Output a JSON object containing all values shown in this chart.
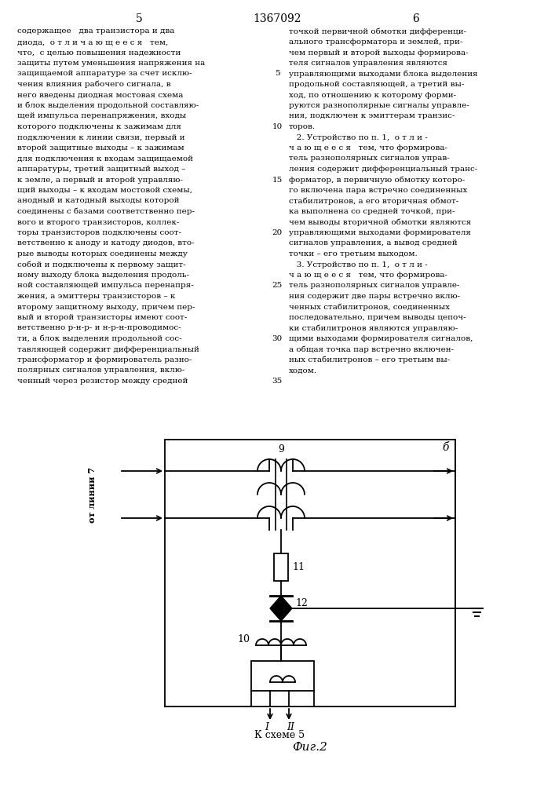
{
  "title_number": "1367092",
  "page_left": "5",
  "page_right": "6",
  "fig_label": "Фиг.2",
  "caption_label": "К схеме 5",
  "left_col_lines": [
    "содержащее   два транзистора и два",
    "диода,  о т л и ч а ю щ е е с я   тем,",
    "что,  с целью повышения надежности",
    "защиты путем уменьшения напряжения на",
    "защищаемой аппаратуре за счет исклю-",
    "чения влияния рабочего сигнала, в",
    "него введены диодная мостовая схема",
    "и блок выделения продольной составляю-",
    "щей импульса перенапряжения, входы",
    "которого подключены к зажимам для",
    "подключения к линии связи, первый и",
    "второй защитные выходы – к зажимам",
    "для подключения к входам защищаемой",
    "аппаратуры, третий защитный выход –",
    "к земле, а первый и второй управляю-",
    "щий выходы – к входам мостовой схемы,",
    "анодный и катодный выходы которой",
    "соединены с базами соответственно пер-",
    "вого и второго транзисторов, коллек-",
    "торы транзисторов подключены соот-",
    "ветственно к аноду и катоду диодов, вто-",
    "рые выводы которых соединены между",
    "собой и подключены к первому защит-",
    "ному выходу блока выделения продоль-",
    "ной составляющей импульса перенапря-",
    "жения, а эмиттеры транзисторов – к",
    "второму защитному выходу, причем пер-",
    "вый и второй транзисторы имеют соот-",
    "ветственно р-н-р- и н-р-н-проводимос-",
    "ти, а блок выделения продольной сос-",
    "тавляющей содержит дифференциальный",
    "трансформатор и формирователь разно-",
    "полярных сигналов управления, вклю-",
    "ченный через резистор между средней"
  ],
  "right_col_lines": [
    "точкой первичной обмотки дифференци-",
    "ального трансформатора и землей, при-",
    "чем первый и второй выходы формирова-",
    "теля сигналов управления являются",
    "управляющими выходами блока выделения",
    "продольной составляющей, а третий вы-",
    "ход, по отношению к которому форми-",
    "руются разнополярные сигналы управле-",
    "ния, подключен к эмиттерам транзис-",
    "торов.",
    "   2. Устройство по п. 1,  о т л и -",
    "ч а ю щ е е с я   тем, что формирова-",
    "тель разнополярных сигналов управ-",
    "ления содержит дифференциальный транс-",
    "форматор, в первичную обмотку которо-",
    "го включена пара встречно соединенных",
    "стабилитронов, а его вторичная обмот-",
    "ка выполнена со средней точкой, при-",
    "чем выводы вторичной обмотки являются",
    "управляющими выходами формирователя",
    "сигналов управления, а вывод средней",
    "точки – его третьим выходом.",
    "   3. Устройство по п. 1,  о т л и -",
    "ч а ю щ е е с я   тем, что формирова-",
    "тель разнополярных сигналов управле-",
    "ния содержит две пары встречно вклю-",
    "ченных стабилитронов, соединенных",
    "последовательно, причем выводы цепоч-",
    "ки стабилитронов являются управляю-",
    "щими выходами формирователя сигналов,",
    "а общая точка пар встречно включен-",
    "ных стабилитронов – его третьим вы-",
    "ходом."
  ]
}
